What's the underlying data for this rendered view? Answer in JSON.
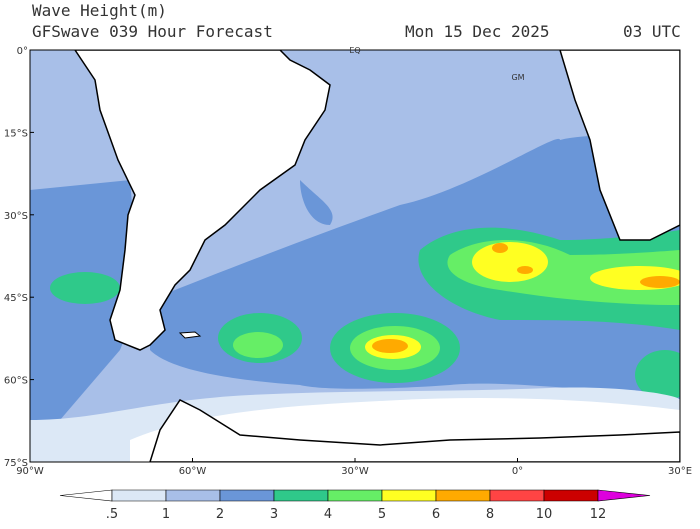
{
  "header": {
    "title": "Wave Height(m)",
    "subtitle": "GFSwave 039 Hour Forecast",
    "date": "Mon 15 Dec 2025",
    "time": "03 UTC"
  },
  "map": {
    "lat_labels": [
      "0°",
      "15°S",
      "30°S",
      "45°S",
      "60°S",
      "75°S"
    ],
    "lon_labels": [
      "90°W",
      "60°W",
      "30°W",
      "0°",
      "30°E"
    ],
    "markers": [
      "EQ",
      "GM"
    ]
  },
  "colorbar": {
    "labels": [
      ".5",
      "1",
      "2",
      "3",
      "4",
      "5",
      "6",
      "8",
      "10",
      "12"
    ],
    "colors": [
      "#ffffff",
      "#dce8f6",
      "#a8bfe8",
      "#6a96d8",
      "#2fc98a",
      "#66ee66",
      "#ffff22",
      "#ffaa00",
      "#ff4444",
      "#cc0000",
      "#dd00dd"
    ]
  }
}
